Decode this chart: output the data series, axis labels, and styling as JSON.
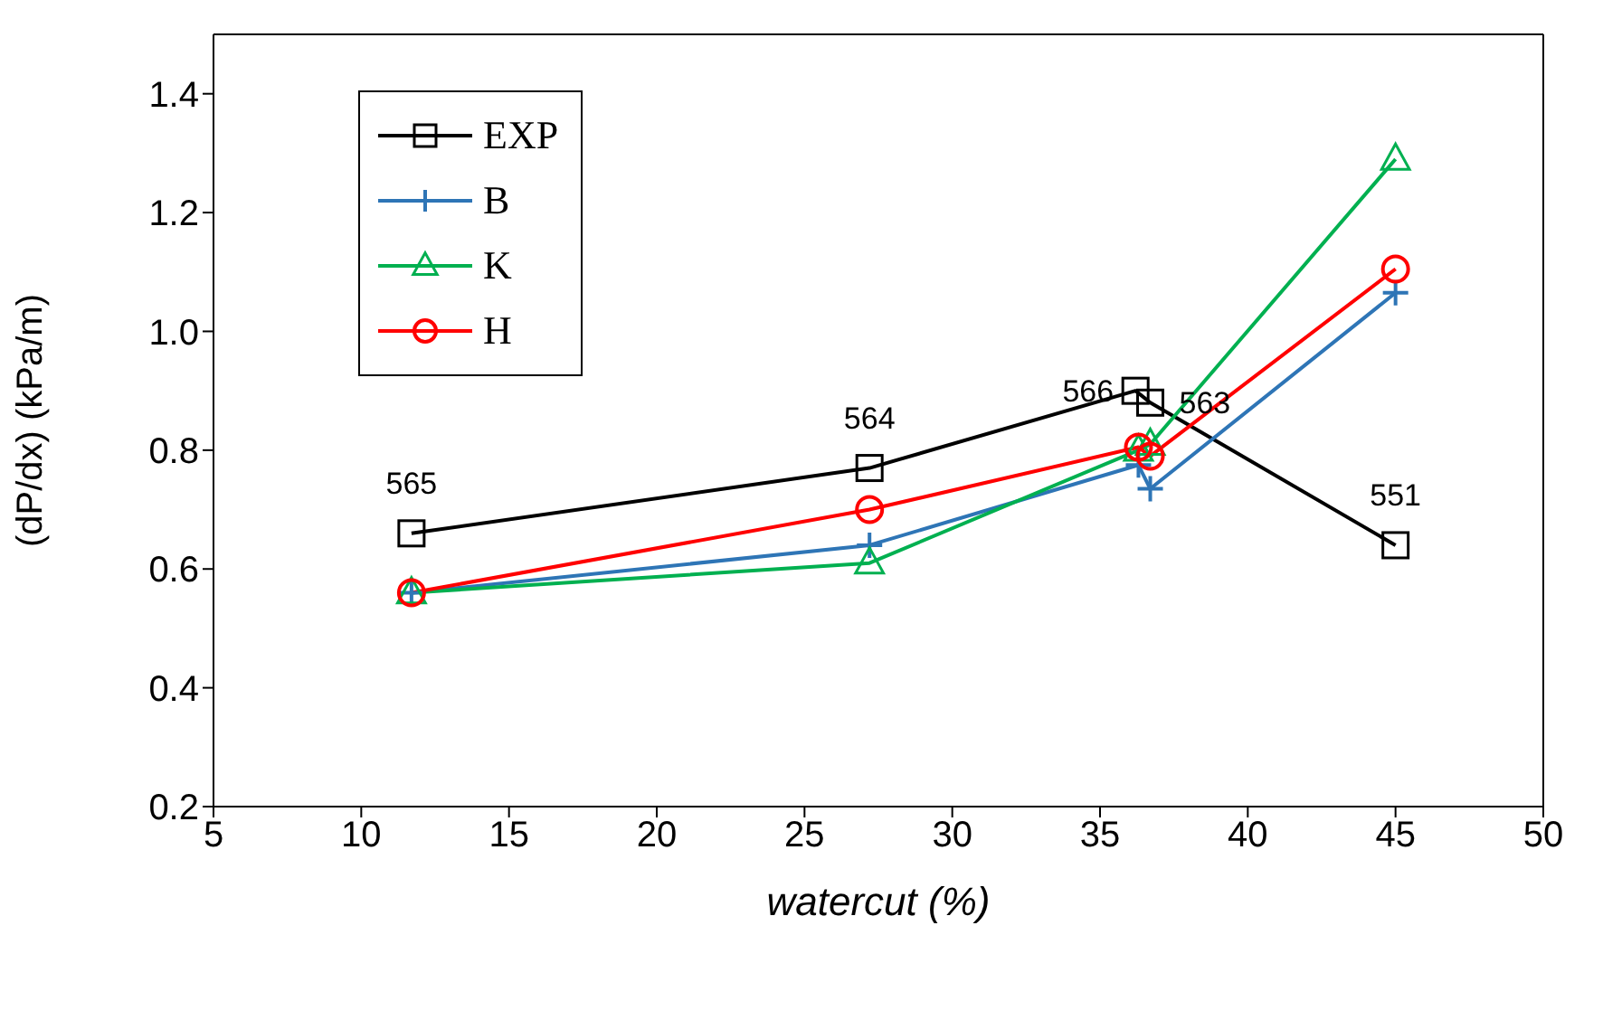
{
  "chart_data": {
    "type": "line",
    "xlabel": "watercut (%)",
    "ylabel": "(dP/dx) (kPa/m)",
    "xlim": [
      5,
      50
    ],
    "xticks": [
      5,
      10,
      15,
      20,
      25,
      30,
      35,
      40,
      45,
      50
    ],
    "ylim": [
      0.2,
      1.5
    ],
    "yticks": [
      {
        "value": 0.2,
        "label": "0.2"
      },
      {
        "value": 0.4,
        "label": "0.4"
      },
      {
        "value": 0.6,
        "label": "0.6"
      },
      {
        "value": 0.8,
        "label": "0.8"
      },
      {
        "value": 1.0,
        "label": "1.0"
      },
      {
        "value": 1.2,
        "label": "1.2"
      },
      {
        "value": 1.4,
        "label": "1.4"
      }
    ],
    "legend": "top left",
    "line_style": "solid",
    "series": [
      {
        "name": "EXP",
        "color": "#000000",
        "marker": "square",
        "x": [
          11.7,
          27.2,
          36.2,
          36.7,
          45
        ],
        "values": [
          0.66,
          0.77,
          0.9,
          0.88,
          0.64
        ]
      },
      {
        "name": "B",
        "color": "#2e75b6",
        "marker": "cross",
        "x": [
          11.7,
          27.2,
          36.3,
          36.7,
          45
        ],
        "values": [
          0.56,
          0.64,
          0.775,
          0.735,
          1.065
        ]
      },
      {
        "name": "K",
        "color": "#00b050",
        "marker": "triangle",
        "x": [
          11.7,
          27.2,
          36.3,
          36.7,
          45
        ],
        "values": [
          0.56,
          0.61,
          0.8,
          0.81,
          1.29
        ]
      },
      {
        "name": "H",
        "color": "#ff0000",
        "marker": "circle",
        "x": [
          11.7,
          27.2,
          36.3,
          36.7,
          45
        ],
        "values": [
          0.56,
          0.7,
          0.805,
          0.79,
          1.105
        ]
      }
    ],
    "annotations": [
      {
        "text": "565",
        "x": 11.7,
        "y": 0.66
      },
      {
        "text": "564",
        "x": 27.2,
        "y": 0.77
      },
      {
        "text": "566",
        "x": 36.2,
        "y": 0.9
      },
      {
        "text": "563",
        "x": 36.7,
        "y": 0.88
      },
      {
        "text": "551",
        "x": 45,
        "y": 0.64
      }
    ]
  }
}
